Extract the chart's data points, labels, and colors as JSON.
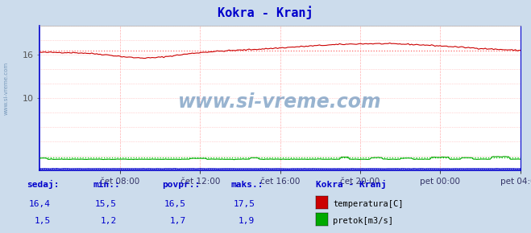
{
  "title": "Kokra - Kranj",
  "title_color": "#0000cc",
  "bg_color": "#ccdcec",
  "plot_bg_color": "#ffffff",
  "grid_color": "#ffb0b0",
  "avg_temp_color": "#ff6666",
  "avg_flow_color": "#00cc00",
  "temp_color": "#cc0000",
  "flow_color": "#00aa00",
  "height_color": "#0000cc",
  "ylim": [
    0,
    20
  ],
  "ytick_vals": [
    10,
    16
  ],
  "xtick_labels": [
    "čet 08:00",
    "čet 12:00",
    "čet 16:00",
    "čet 20:00",
    "pet 00:00",
    "pet 04:00"
  ],
  "n_points": 288,
  "temp_avg": 16.5,
  "temp_min": 15.5,
  "temp_max": 17.5,
  "temp_current": 16.4,
  "flow_avg": 1.7,
  "flow_min": 1.2,
  "flow_max": 1.9,
  "flow_current": 1.5,
  "watermark": "www.si-vreme.com",
  "watermark_color": "#4477aa",
  "legend_title": "Kokra - Kranj",
  "legend_title_color": "#0000cc",
  "sedaj_label": "sedaj:",
  "min_label": "min.:",
  "povpr_label": "povpr.:",
  "maks_label": "maks.:",
  "temp_label": "temperatura[C]",
  "flow_label": "pretok[m3/s]",
  "label_color": "#0000cc",
  "side_text": "www.si-vreme.com"
}
